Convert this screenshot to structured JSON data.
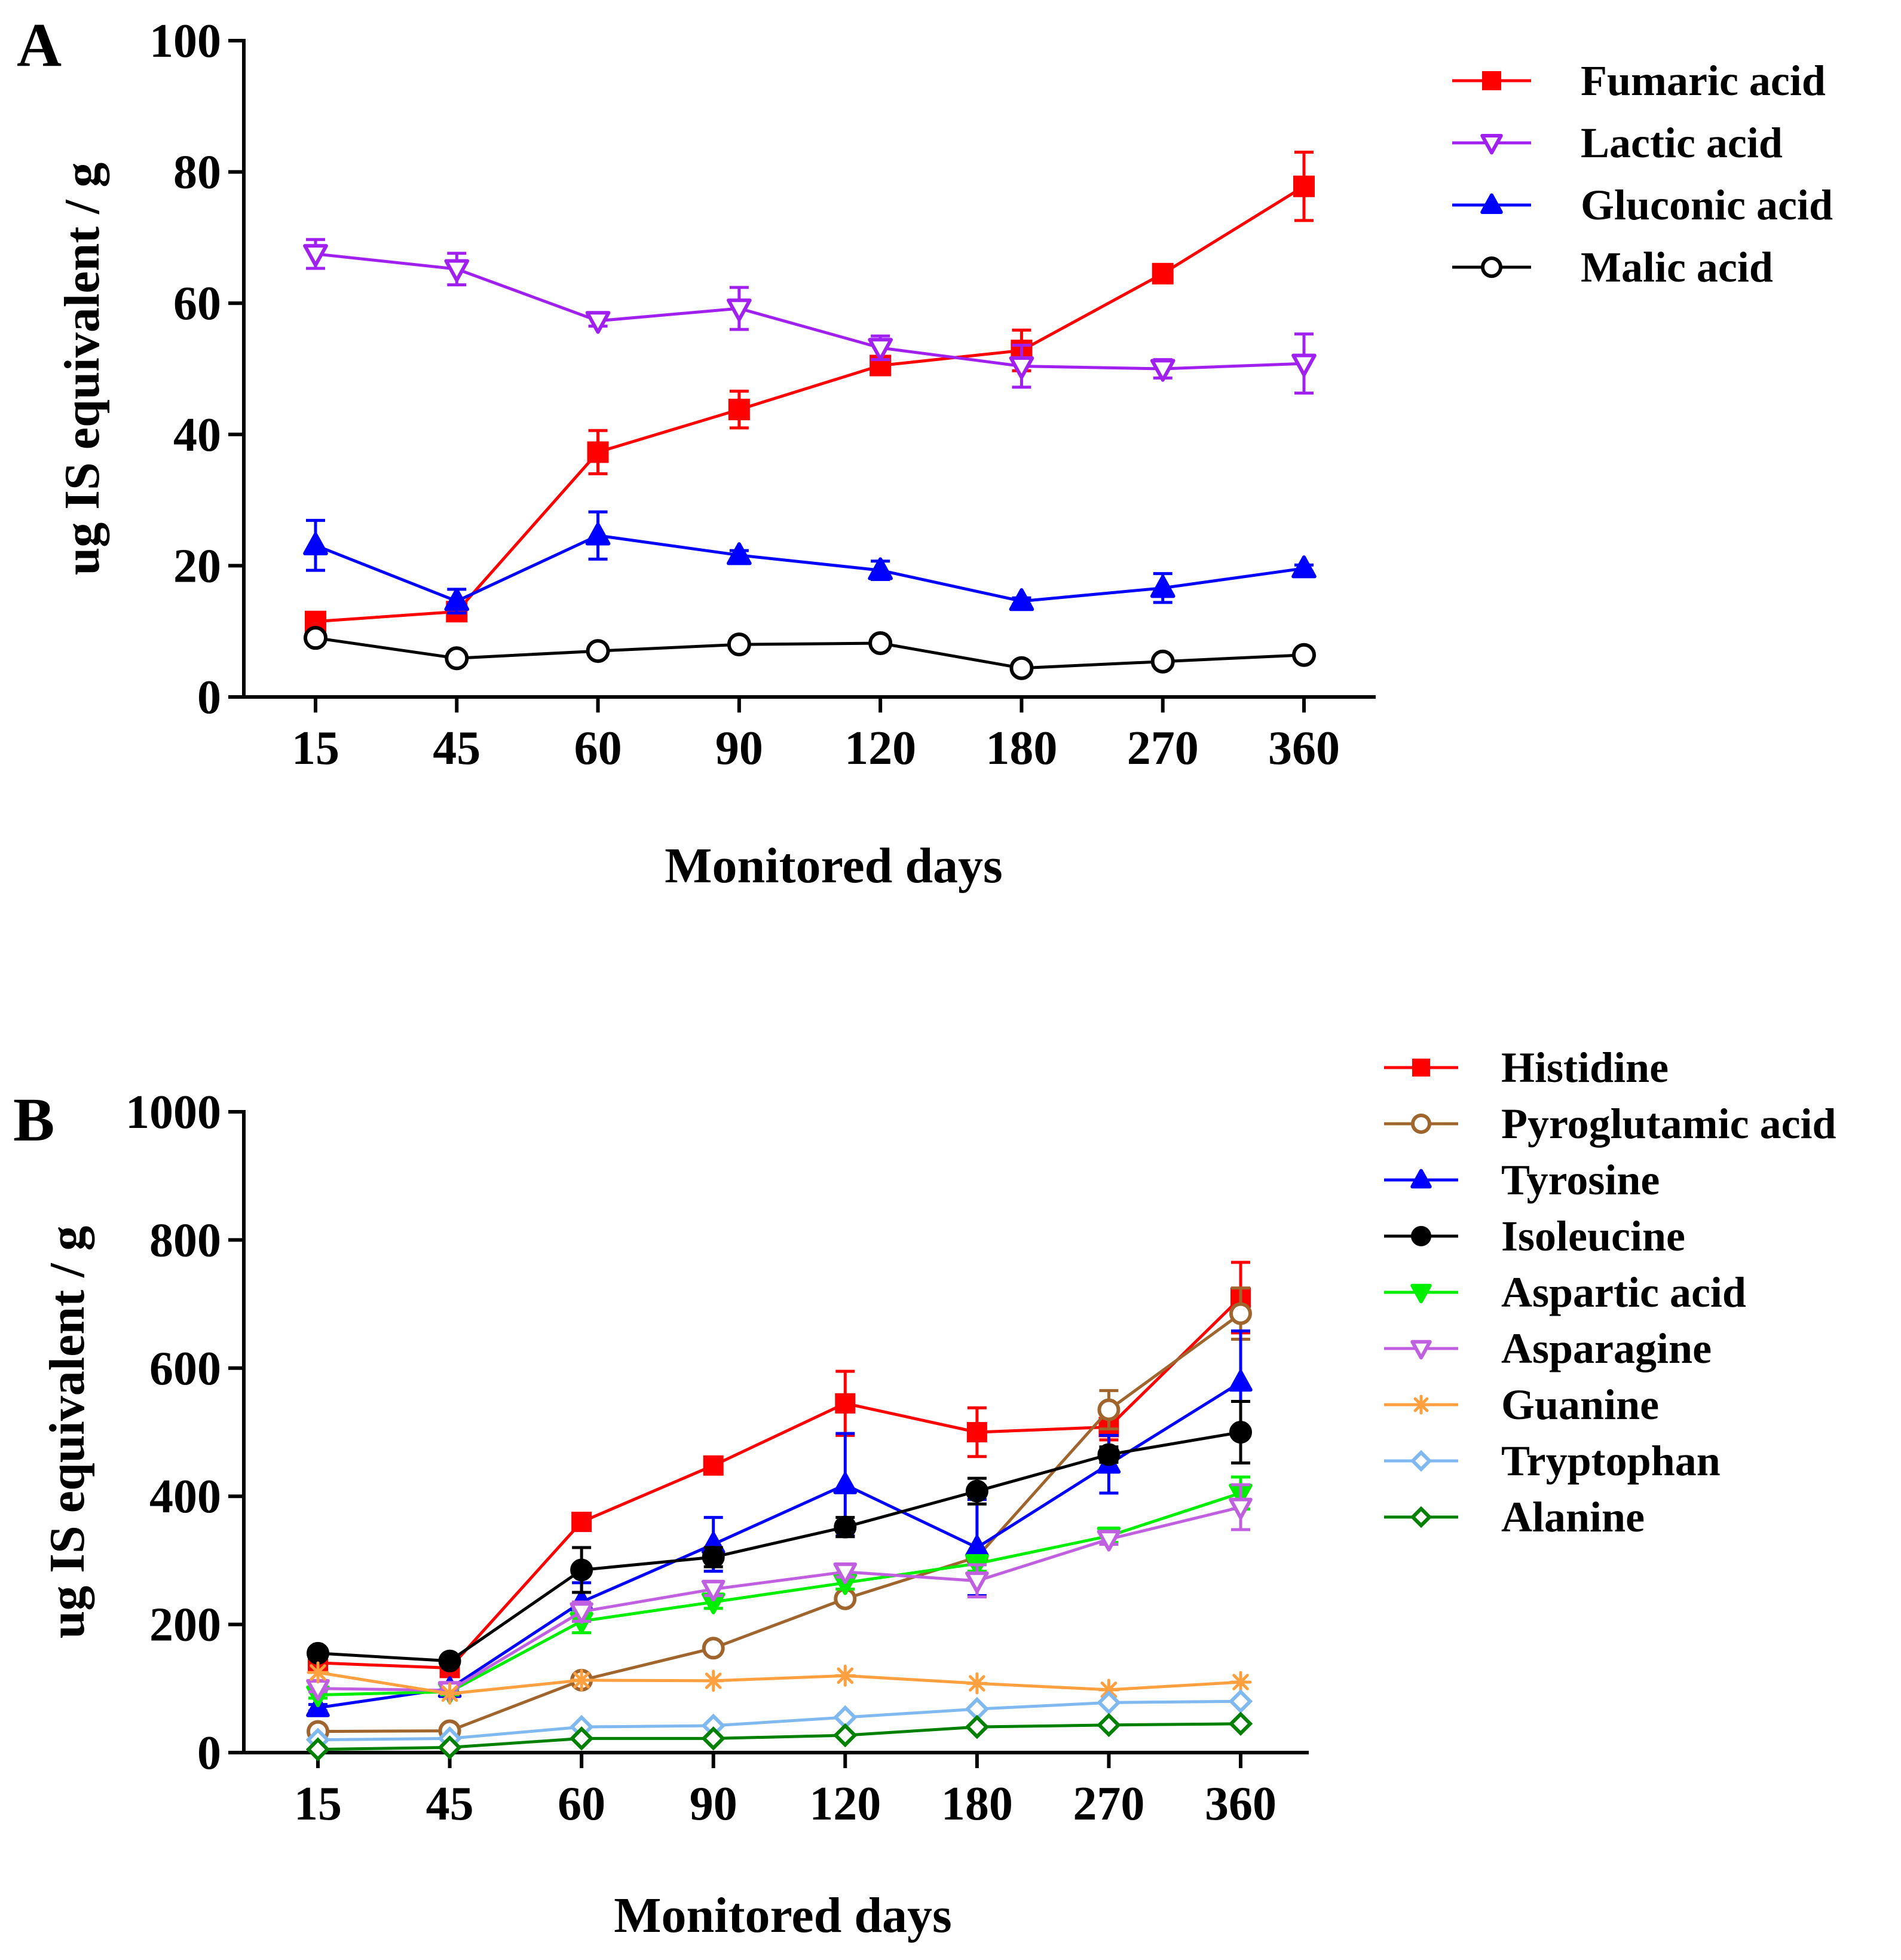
{
  "chart_data": [
    {
      "panel": "A",
      "type": "line",
      "title": "",
      "xlabel": "Monitored days",
      "ylabel": "ug IS equivalent / g",
      "categories": [
        "15",
        "45",
        "60",
        "90",
        "120",
        "180",
        "270",
        "360"
      ],
      "ylim": [
        0,
        100
      ],
      "yticks": [
        0,
        20,
        40,
        60,
        80,
        100
      ],
      "grid": false,
      "legend_position": "top-right",
      "series": [
        {
          "name": "Fumaric acid",
          "color": "#ff0000",
          "marker": "square-filled",
          "values": [
            11.5,
            13,
            37.3,
            43.8,
            50.5,
            52.8,
            64.5,
            77.8
          ],
          "errors": [
            1,
            1,
            3.3,
            2.8,
            1.3,
            3.1,
            0.8,
            5.2
          ]
        },
        {
          "name": "Lactic acid",
          "color": "#a020f0",
          "marker": "triangle-down-open",
          "values": [
            67.5,
            65.2,
            57.3,
            59.2,
            53.2,
            50.4,
            50,
            50.8
          ],
          "errors": [
            2.2,
            2.4,
            0.8,
            3.2,
            1.8,
            3.2,
            1.4,
            4.5
          ]
        },
        {
          "name": "Gluconic acid",
          "color": "#0000ff",
          "marker": "triangle-up-filled",
          "values": [
            23.1,
            14.6,
            24.6,
            21.6,
            19.3,
            14.6,
            16.6,
            19.6
          ],
          "errors": [
            3.8,
            1.8,
            3.6,
            0.7,
            1.4,
            0.5,
            2.2,
            0.5
          ]
        },
        {
          "name": "Malic acid",
          "color": "#000000",
          "marker": "circle-open",
          "values": [
            9,
            5.9,
            7,
            8,
            8.2,
            4.4,
            5.4,
            6.4
          ],
          "errors": [
            0,
            0,
            0,
            0,
            0,
            0,
            0,
            0
          ]
        }
      ]
    },
    {
      "panel": "B",
      "type": "line",
      "title": "",
      "xlabel": "Monitored days",
      "ylabel": "ug IS equivalent / g",
      "categories": [
        "15",
        "45",
        "60",
        "90",
        "120",
        "180",
        "270",
        "360"
      ],
      "ylim": [
        0,
        1000
      ],
      "yticks": [
        0,
        200,
        400,
        600,
        800,
        1000
      ],
      "grid": false,
      "legend_position": "top-right",
      "series": [
        {
          "name": "Histidine",
          "color": "#ff0000",
          "marker": "square-filled",
          "values": [
            140,
            132,
            360,
            448,
            545,
            500,
            508,
            710
          ],
          "errors": [
            10,
            10,
            8,
            6,
            50,
            38,
            20,
            55
          ]
        },
        {
          "name": "Pyroglutamic acid",
          "color": "#a0642d",
          "marker": "circle-open",
          "values": [
            33,
            34,
            113,
            163,
            240,
            305,
            535,
            685
          ],
          "errors": [
            0,
            0,
            0,
            0,
            0,
            0,
            30,
            40
          ]
        },
        {
          "name": "Tyrosine",
          "color": "#0000ff",
          "marker": "triangle-up-filled",
          "values": [
            70,
            100,
            235,
            325,
            418,
            320,
            450,
            578
          ],
          "errors": [
            5,
            6,
            30,
            42,
            80,
            75,
            45,
            80
          ]
        },
        {
          "name": "Isoleucine",
          "color": "#000000",
          "marker": "circle-filled",
          "values": [
            155,
            143,
            285,
            305,
            352,
            408,
            465,
            500
          ],
          "errors": [
            5,
            5,
            35,
            15,
            15,
            20,
            12,
            48
          ]
        },
        {
          "name": "Aspartic acid",
          "color": "#00ee00",
          "marker": "triangle-down-filled",
          "values": [
            90,
            95,
            205,
            235,
            265,
            295,
            338,
            405
          ],
          "errors": [
            5,
            5,
            18,
            10,
            10,
            12,
            10,
            25
          ]
        },
        {
          "name": "Asparagine",
          "color": "#c060e0",
          "marker": "triangle-down-open",
          "values": [
            100,
            97,
            220,
            255,
            282,
            268,
            333,
            383
          ],
          "errors": [
            5,
            5,
            15,
            10,
            8,
            25,
            8,
            35
          ]
        },
        {
          "name": "Guanine",
          "color": "#ffa040",
          "marker": "asterisk",
          "values": [
            125,
            92,
            113,
            112,
            120,
            108,
            98,
            110
          ],
          "errors": [
            0,
            0,
            0,
            0,
            0,
            0,
            0,
            0
          ]
        },
        {
          "name": "Tryptophan",
          "color": "#80b8f0",
          "marker": "diamond-open",
          "values": [
            20,
            22,
            40,
            42,
            55,
            68,
            78,
            80
          ],
          "errors": [
            0,
            0,
            0,
            0,
            0,
            0,
            0,
            0
          ]
        },
        {
          "name": "Alanine",
          "color": "#008000",
          "marker": "diamond-open",
          "values": [
            5,
            8,
            22,
            22,
            27,
            40,
            43,
            45
          ],
          "errors": [
            0,
            0,
            0,
            0,
            0,
            0,
            0,
            0
          ]
        }
      ]
    }
  ]
}
